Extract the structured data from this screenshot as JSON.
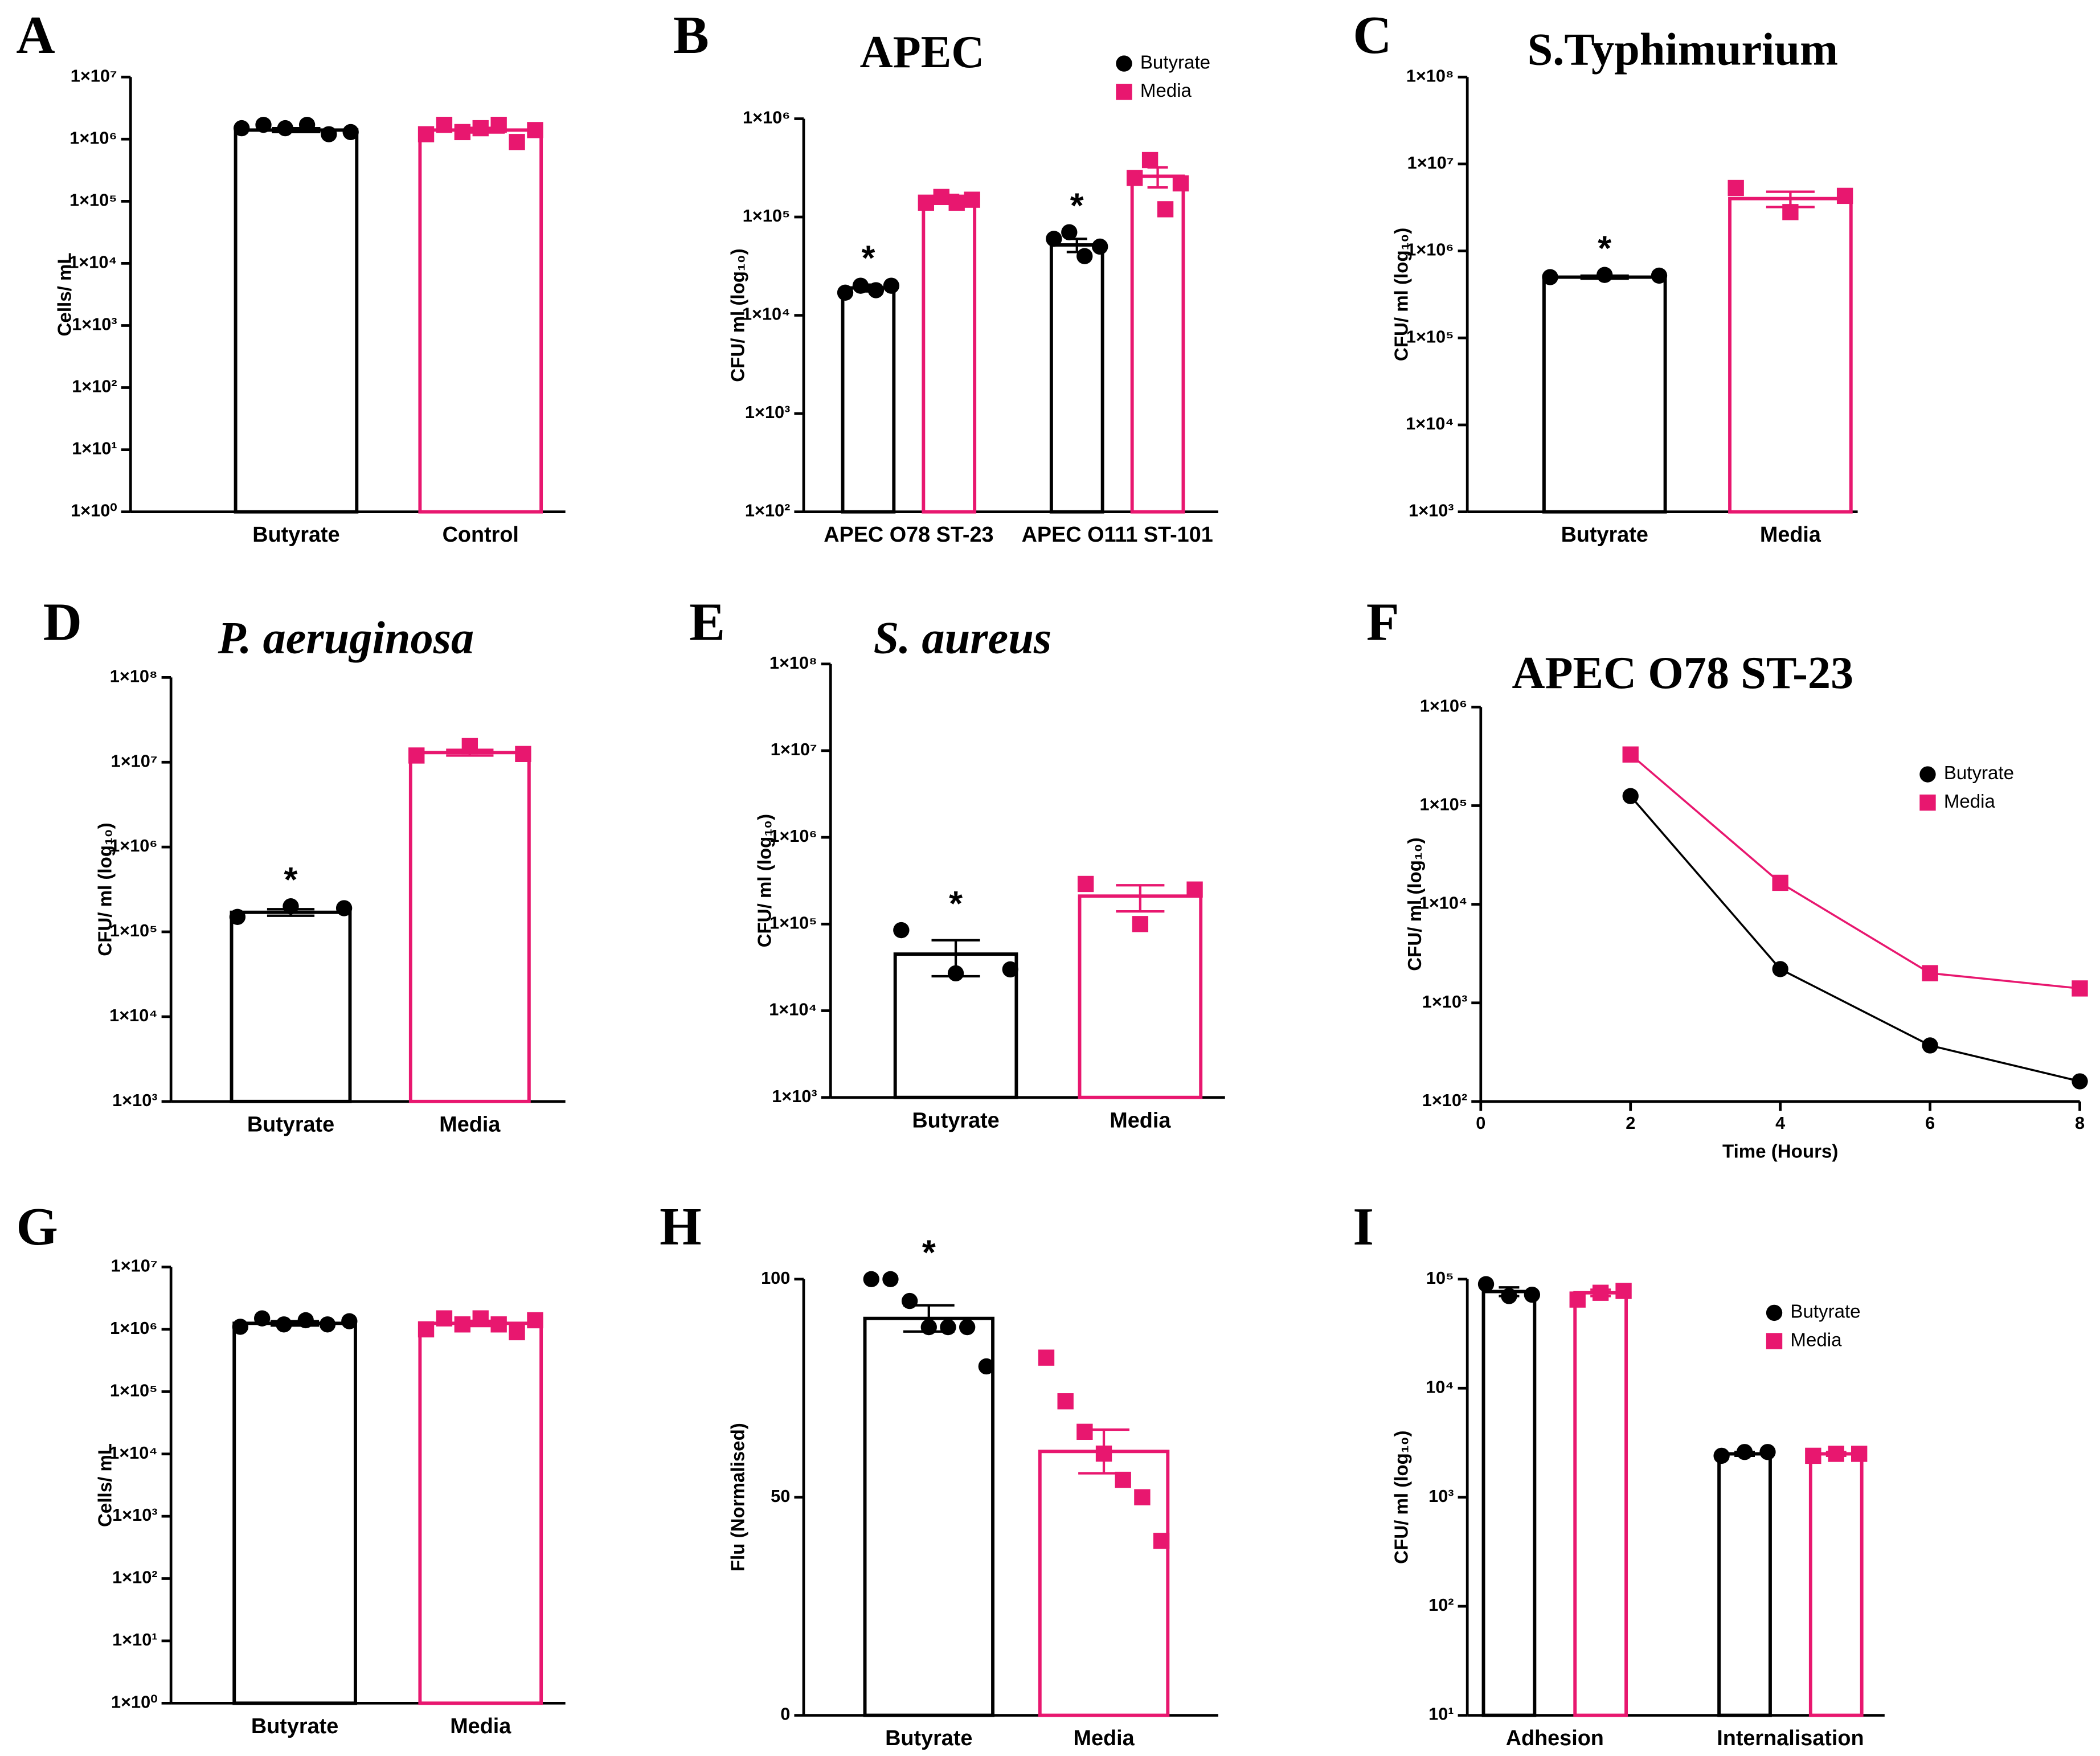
{
  "chart_data": [
    {
      "panel": "A",
      "type": "bar",
      "log_y": true,
      "ylabel": "Cells/ mL",
      "categories": [
        "Butyrate",
        "Control"
      ],
      "values": [
        1400000,
        1400000
      ],
      "errors": [
        100000,
        120000
      ],
      "points": [
        [
          1500000,
          1700000,
          1500000,
          1700000,
          1200000,
          1300000
        ],
        [
          1200000,
          1700000,
          1300000,
          1500000,
          1700000,
          900000,
          1400000
        ]
      ],
      "colors": [
        "#000000",
        "#e8176f"
      ],
      "markers": [
        "circle",
        "square"
      ],
      "ylim": [
        1,
        10000000
      ],
      "yticks": [
        {
          "value": 1,
          "label": "1×10⁰"
        },
        {
          "value": 10,
          "label": "1×10¹"
        },
        {
          "value": 100,
          "label": "1×10²"
        },
        {
          "value": 1000,
          "label": "1×10³"
        },
        {
          "value": 10000,
          "label": "1×10⁴"
        },
        {
          "value": 100000,
          "label": "1×10⁵"
        },
        {
          "value": 1000000,
          "label": "1×10⁶"
        },
        {
          "value": 10000000,
          "label": "1×10⁷"
        }
      ]
    },
    {
      "panel": "B",
      "type": "bar",
      "log_y": true,
      "title": "APEC",
      "ylabel": "CFU/ ml (log₁₀)",
      "categories": [
        "APEC O78 ST-23",
        "APEC O111 ST-101"
      ],
      "series": [
        {
          "name": "Butyrate",
          "color": "#000000",
          "marker": "circle",
          "values": [
            19000,
            52000
          ],
          "errors": [
            1500,
            8000
          ],
          "points": [
            [
              17000,
              20000,
              18000,
              20000
            ],
            [
              60000,
              70000,
              40000,
              50000
            ]
          ],
          "annotations": [
            "*",
            "*"
          ]
        },
        {
          "name": "Media",
          "color": "#e8176f",
          "marker": "square",
          "values": [
            160000,
            260000
          ],
          "errors": [
            8000,
            60000
          ],
          "points": [
            [
              140000,
              160000,
              140000,
              150000
            ],
            [
              250000,
              380000,
              120000,
              220000
            ]
          ]
        }
      ],
      "legend": "upper right",
      "ylim": [
        100,
        1000000
      ],
      "yticks": [
        {
          "value": 100,
          "label": "1×10²"
        },
        {
          "value": 1000,
          "label": "1×10³"
        },
        {
          "value": 10000,
          "label": "1×10⁴"
        },
        {
          "value": 100000,
          "label": "1×10⁵"
        },
        {
          "value": 1000000,
          "label": "1×10⁶"
        }
      ]
    },
    {
      "panel": "C",
      "type": "bar",
      "log_y": true,
      "title": "S.Typhimurium",
      "ylabel": "CFU/ ml (log₁₀)",
      "categories": [
        "Butyrate",
        "Media"
      ],
      "values": [
        500000,
        4000000
      ],
      "errors": [
        20000,
        800000
      ],
      "points": [
        [
          500000,
          530000,
          520000
        ],
        [
          5300000,
          2800000,
          4300000
        ]
      ],
      "annotations": [
        "*",
        null
      ],
      "colors": [
        "#000000",
        "#e8176f"
      ],
      "markers": [
        "circle",
        "square"
      ],
      "ylim": [
        1000,
        100000000
      ],
      "yticks": [
        {
          "value": 1000,
          "label": "1×10³"
        },
        {
          "value": 10000,
          "label": "1×10⁴"
        },
        {
          "value": 100000,
          "label": "1×10⁵"
        },
        {
          "value": 1000000,
          "label": "1×10⁶"
        },
        {
          "value": 10000000,
          "label": "1×10⁷"
        },
        {
          "value": 100000000,
          "label": "1×10⁸"
        }
      ]
    },
    {
      "panel": "D",
      "type": "bar",
      "log_y": true,
      "title": "P. aeruginosa",
      "title_style": "italic",
      "ylabel": "CFU/ ml (log₁₀)",
      "categories": [
        "Butyrate",
        "Media"
      ],
      "values": [
        170000,
        13000000
      ],
      "errors": [
        15000,
        1000000
      ],
      "points": [
        [
          150000,
          200000,
          190000
        ],
        [
          12000000,
          15500000,
          12500000
        ]
      ],
      "annotations": [
        "*",
        null
      ],
      "colors": [
        "#000000",
        "#e8176f"
      ],
      "markers": [
        "circle",
        "square"
      ],
      "ylim": [
        1000,
        100000000
      ],
      "yticks": [
        {
          "value": 1000,
          "label": "1×10³"
        },
        {
          "value": 10000,
          "label": "1×10⁴"
        },
        {
          "value": 100000,
          "label": "1×10⁵"
        },
        {
          "value": 1000000,
          "label": "1×10⁶"
        },
        {
          "value": 10000000,
          "label": "1×10⁷"
        },
        {
          "value": 100000000,
          "label": "1×10⁸"
        }
      ]
    },
    {
      "panel": "E",
      "type": "bar",
      "log_y": true,
      "title": "S. aureus",
      "title_style": "italic",
      "ylabel": "CFU/ ml (log₁₀)",
      "categories": [
        "Butyrate",
        "Media"
      ],
      "values": [
        45000,
        210000
      ],
      "errors": [
        20000,
        70000
      ],
      "points": [
        [
          85000,
          27000,
          30000
        ],
        [
          290000,
          100000,
          250000
        ]
      ],
      "annotations": [
        "*",
        null
      ],
      "colors": [
        "#000000",
        "#e8176f"
      ],
      "markers": [
        "circle",
        "square"
      ],
      "ylim": [
        1000,
        100000000
      ],
      "yticks": [
        {
          "value": 1000,
          "label": "1×10³"
        },
        {
          "value": 10000,
          "label": "1×10⁴"
        },
        {
          "value": 100000,
          "label": "1×10⁵"
        },
        {
          "value": 1000000,
          "label": "1×10⁶"
        },
        {
          "value": 10000000,
          "label": "1×10⁷"
        },
        {
          "value": 100000000,
          "label": "1×10⁸"
        }
      ]
    },
    {
      "panel": "F",
      "type": "line",
      "log_y": true,
      "title": "APEC O78 ST-23",
      "ylabel": "CFU/ ml (log₁₀)",
      "xlabel": "Time (Hours)",
      "x": [
        2,
        4,
        6,
        8
      ],
      "xlim": [
        0,
        8
      ],
      "xticks": [
        0,
        2,
        4,
        6,
        8
      ],
      "series": [
        {
          "name": "Butyrate",
          "color": "#000000",
          "marker": "circle",
          "values": [
            125000,
            2200,
            370,
            160
          ]
        },
        {
          "name": "Media",
          "color": "#e8176f",
          "marker": "square",
          "values": [
            330000,
            16500,
            2000,
            1400
          ]
        }
      ],
      "legend": "upper right",
      "ylim": [
        100,
        1000000
      ],
      "yticks": [
        {
          "value": 100,
          "label": "1×10²"
        },
        {
          "value": 1000,
          "label": "1×10³"
        },
        {
          "value": 10000,
          "label": "1×10⁴"
        },
        {
          "value": 100000,
          "label": "1×10⁵"
        },
        {
          "value": 1000000,
          "label": "1×10⁶"
        }
      ]
    },
    {
      "panel": "G",
      "type": "bar",
      "log_y": true,
      "ylabel": "Cells/ mL",
      "categories": [
        "Butyrate",
        "Media"
      ],
      "values": [
        1250000,
        1250000
      ],
      "errors": [
        100000,
        120000
      ],
      "points": [
        [
          1100000,
          1500000,
          1200000,
          1400000,
          1200000,
          1350000
        ],
        [
          1000000,
          1500000,
          1200000,
          1500000,
          1200000,
          900000,
          1400000
        ]
      ],
      "colors": [
        "#000000",
        "#e8176f"
      ],
      "markers": [
        "circle",
        "square"
      ],
      "ylim": [
        1,
        10000000
      ],
      "yticks": [
        {
          "value": 1,
          "label": "1×10⁰"
        },
        {
          "value": 10,
          "label": "1×10¹"
        },
        {
          "value": 100,
          "label": "1×10²"
        },
        {
          "value": 1000,
          "label": "1×10³"
        },
        {
          "value": 10000,
          "label": "1×10⁴"
        },
        {
          "value": 100000,
          "label": "1×10⁵"
        },
        {
          "value": 1000000,
          "label": "1×10⁶"
        },
        {
          "value": 10000000,
          "label": "1×10⁷"
        }
      ]
    },
    {
      "panel": "H",
      "type": "bar",
      "log_y": false,
      "ylabel": "Flu (Normalised)",
      "ylabel_weight": "normal",
      "categories": [
        "Butyrate",
        "Media"
      ],
      "values": [
        91,
        60.5
      ],
      "errors": [
        3,
        5
      ],
      "points": [
        [
          100,
          100,
          95,
          89,
          89,
          89,
          80
        ],
        [
          82,
          72,
          65,
          60,
          54,
          50,
          40
        ]
      ],
      "annotations": [
        "*",
        null
      ],
      "colors": [
        "#000000",
        "#e8176f"
      ],
      "markers": [
        "circle",
        "square"
      ],
      "ylim": [
        0,
        100
      ],
      "yticks": [
        0,
        50,
        100
      ]
    },
    {
      "panel": "I",
      "type": "bar",
      "log_y": true,
      "ylabel": "CFU/ ml (log₁₀)",
      "categories": [
        "Adhesion",
        "Internalisation"
      ],
      "series": [
        {
          "name": "Butyrate",
          "color": "#000000",
          "marker": "circle",
          "values": [
            77000,
            2500
          ],
          "errors": [
            7000,
            100
          ],
          "points": [
            [
              90000,
              70000,
              72000
            ],
            [
              2400,
              2600,
              2600
            ]
          ]
        },
        {
          "name": "Media",
          "color": "#e8176f",
          "marker": "square",
          "values": [
            75000,
            2500
          ],
          "errors": [
            5000,
            100
          ],
          "points": [
            [
              65000,
              75000,
              78000
            ],
            [
              2400,
              2500,
              2500
            ]
          ]
        }
      ],
      "legend": "upper right",
      "ylim": [
        10,
        100000
      ],
      "yticks": [
        {
          "value": 10,
          "label": "10¹"
        },
        {
          "value": 100,
          "label": "10²"
        },
        {
          "value": 1000,
          "label": "10³"
        },
        {
          "value": 10000,
          "label": "10⁴"
        },
        {
          "value": 100000,
          "label": "10⁵"
        }
      ]
    }
  ]
}
